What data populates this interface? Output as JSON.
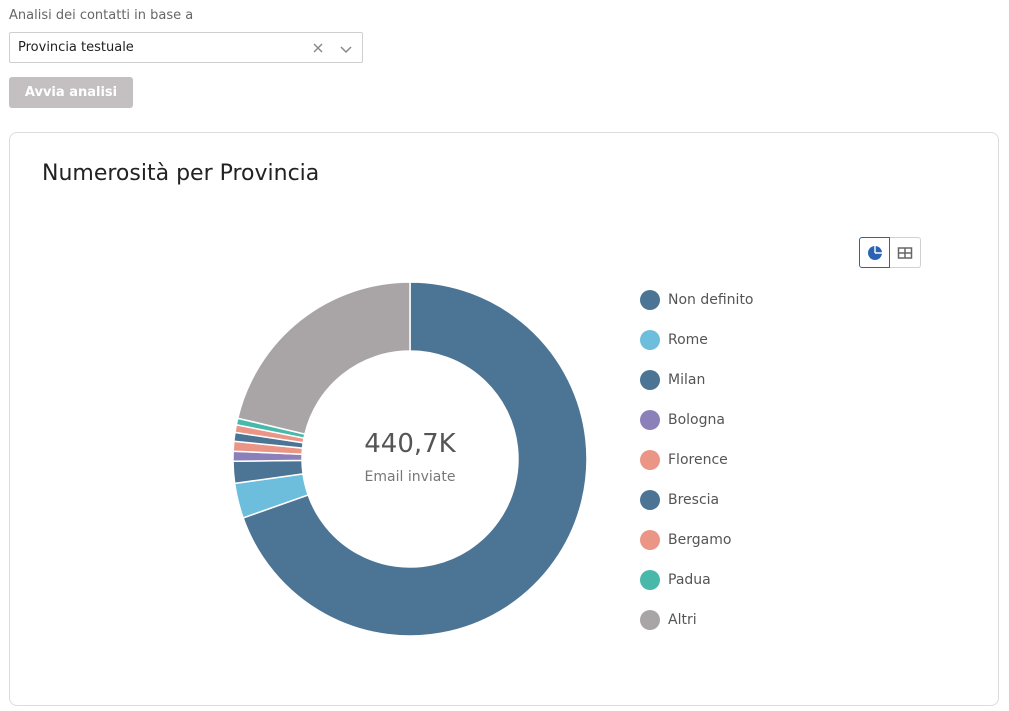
{
  "filter": {
    "label": "Analisi dei contatti in base a",
    "selected_value": "Provincia testuale",
    "run_button_label": "Avvia analisi"
  },
  "card": {
    "title": "Numerosità per Provincia",
    "center_value": "440,7K",
    "center_label": "Email inviate"
  },
  "icons": [
    "clear-icon",
    "chevron-down-icon",
    "pie-chart-icon",
    "table-icon"
  ],
  "chart_data": {
    "type": "pie",
    "variant": "donut",
    "legend_position": "right",
    "categories": [
      "Non definito",
      "Rome",
      "Milan",
      "Bologna",
      "Florence",
      "Brescia",
      "Bergamo",
      "Padua",
      "Altri"
    ],
    "values": [
      69.6,
      3.2,
      2.0,
      0.9,
      0.9,
      0.8,
      0.7,
      0.6,
      21.3
    ],
    "colors": [
      "#4c7494",
      "#6dbedc",
      "#4c7494",
      "#8b80b9",
      "#ea9585",
      "#4c7494",
      "#ea9585",
      "#47b8aa",
      "#a9a5a6"
    ]
  }
}
